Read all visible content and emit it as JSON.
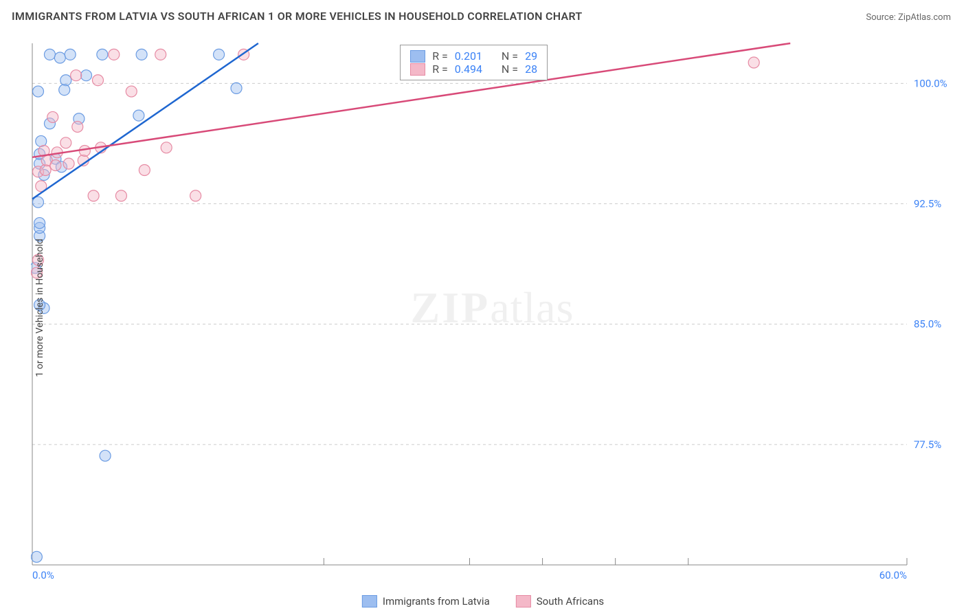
{
  "header": {
    "title": "IMMIGRANTS FROM LATVIA VS SOUTH AFRICAN 1 OR MORE VEHICLES IN HOUSEHOLD CORRELATION CHART",
    "source": "Source: ZipAtlas.com"
  },
  "chart": {
    "type": "scatter",
    "ylabel": "1 or more Vehicles in Household",
    "xlim": [
      0.0,
      60.0
    ],
    "ylim": [
      70.0,
      102.5
    ],
    "xtick_positions": [
      0.0,
      20.0,
      30.0,
      35.0,
      40.0,
      45.0,
      60.0
    ],
    "xtick_labels": [
      "0.0%",
      "",
      "",
      "",
      "",
      "",
      "60.0%"
    ],
    "ytick_positions": [
      77.5,
      85.0,
      92.5,
      100.0
    ],
    "ytick_labels": [
      "77.5%",
      "85.0%",
      "92.5%",
      "100.0%"
    ],
    "grid_color": "#cccccc",
    "background_color": "#ffffff",
    "axis_color": "#888888",
    "axis_label_color": "#3b82f6",
    "marker_radius": 8,
    "marker_opacity": 0.45,
    "line_width": 2.5,
    "watermark": "ZIPatlas",
    "series": [
      {
        "name": "Immigrants from Latvia",
        "color_stroke": "#6a9be2",
        "color_fill": "#9dbef0",
        "line_color": "#1e66d0",
        "R": "0.201",
        "N": "29",
        "trend": {
          "x1": 0.0,
          "y1": 92.8,
          "x2": 15.5,
          "y2": 102.5
        },
        "points": [
          {
            "x": 0.4,
            "y": 92.6
          },
          {
            "x": 0.8,
            "y": 94.3
          },
          {
            "x": 0.5,
            "y": 95.0
          },
          {
            "x": 0.5,
            "y": 95.6
          },
          {
            "x": 1.6,
            "y": 95.3
          },
          {
            "x": 2.0,
            "y": 94.8
          },
          {
            "x": 1.2,
            "y": 97.5
          },
          {
            "x": 0.3,
            "y": 70.5
          },
          {
            "x": 0.8,
            "y": 86.0
          },
          {
            "x": 0.5,
            "y": 86.2
          },
          {
            "x": 0.2,
            "y": 88.5
          },
          {
            "x": 0.5,
            "y": 90.5
          },
          {
            "x": 0.5,
            "y": 91.0
          },
          {
            "x": 0.5,
            "y": 91.3
          },
          {
            "x": 2.3,
            "y": 100.2
          },
          {
            "x": 2.2,
            "y": 99.6
          },
          {
            "x": 1.2,
            "y": 101.8
          },
          {
            "x": 1.9,
            "y": 101.6
          },
          {
            "x": 2.6,
            "y": 101.8
          },
          {
            "x": 3.2,
            "y": 97.8
          },
          {
            "x": 3.7,
            "y": 100.5
          },
          {
            "x": 4.8,
            "y": 101.8
          },
          {
            "x": 7.3,
            "y": 98.0
          },
          {
            "x": 5.0,
            "y": 76.8
          },
          {
            "x": 7.5,
            "y": 101.8
          },
          {
            "x": 12.8,
            "y": 101.8
          },
          {
            "x": 14.0,
            "y": 99.7
          },
          {
            "x": 0.4,
            "y": 99.5
          },
          {
            "x": 0.6,
            "y": 96.4
          }
        ]
      },
      {
        "name": "South Africans",
        "color_stroke": "#e68aa3",
        "color_fill": "#f4b8c8",
        "line_color": "#d84a78",
        "R": "0.494",
        "N": "28",
        "trend": {
          "x1": 0.0,
          "y1": 95.4,
          "x2": 52.0,
          "y2": 102.5
        },
        "points": [
          {
            "x": 0.6,
            "y": 93.6
          },
          {
            "x": 0.4,
            "y": 94.5
          },
          {
            "x": 0.9,
            "y": 94.6
          },
          {
            "x": 1.0,
            "y": 95.2
          },
          {
            "x": 1.6,
            "y": 94.9
          },
          {
            "x": 0.8,
            "y": 95.8
          },
          {
            "x": 1.7,
            "y": 95.7
          },
          {
            "x": 1.4,
            "y": 97.9
          },
          {
            "x": 2.5,
            "y": 95.0
          },
          {
            "x": 2.3,
            "y": 96.3
          },
          {
            "x": 3.1,
            "y": 97.3
          },
          {
            "x": 3.5,
            "y": 95.2
          },
          {
            "x": 3.6,
            "y": 95.8
          },
          {
            "x": 4.2,
            "y": 93.0
          },
          {
            "x": 4.7,
            "y": 96.0
          },
          {
            "x": 5.6,
            "y": 101.8
          },
          {
            "x": 6.1,
            "y": 93.0
          },
          {
            "x": 6.8,
            "y": 99.5
          },
          {
            "x": 7.7,
            "y": 94.6
          },
          {
            "x": 8.8,
            "y": 101.8
          },
          {
            "x": 9.2,
            "y": 96.0
          },
          {
            "x": 11.2,
            "y": 93.0
          },
          {
            "x": 14.5,
            "y": 101.8
          },
          {
            "x": 0.3,
            "y": 88.2
          },
          {
            "x": 0.4,
            "y": 89.0
          },
          {
            "x": 49.5,
            "y": 101.3
          },
          {
            "x": 3.0,
            "y": 100.5
          },
          {
            "x": 4.5,
            "y": 100.2
          }
        ]
      }
    ],
    "legend_box": {
      "rows": [
        {
          "swatch_fill": "#9dbef0",
          "swatch_stroke": "#6a9be2",
          "r_label": "R =",
          "r_val": "0.201",
          "n_label": "N =",
          "n_val": "29"
        },
        {
          "swatch_fill": "#f4b8c8",
          "swatch_stroke": "#e68aa3",
          "r_label": "R =",
          "r_val": "0.494",
          "n_label": "N =",
          "n_val": "28"
        }
      ]
    },
    "footer_legend": [
      {
        "swatch_fill": "#9dbef0",
        "swatch_stroke": "#6a9be2",
        "label": "Immigrants from Latvia"
      },
      {
        "swatch_fill": "#f4b8c8",
        "swatch_stroke": "#e68aa3",
        "label": "South Africans"
      }
    ]
  }
}
